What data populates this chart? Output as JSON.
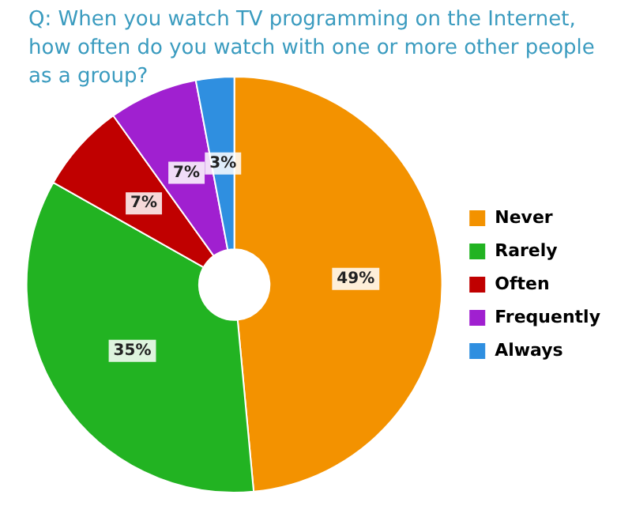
{
  "chart_data": {
    "type": "donut",
    "title": "Q: When you watch TV programming on the Internet, how often do you watch with one or more other people as a group?",
    "categories": [
      "Never",
      "Rarely",
      "Often",
      "Frequently",
      "Always"
    ],
    "values": [
      49,
      35,
      7,
      7,
      3
    ],
    "colors": [
      "#f39200",
      "#22b322",
      "#c00000",
      "#a020d0",
      "#2f8fe0"
    ],
    "value_labels": [
      "49%",
      "35%",
      "7%",
      "7%",
      "3%"
    ],
    "legend": "right"
  }
}
